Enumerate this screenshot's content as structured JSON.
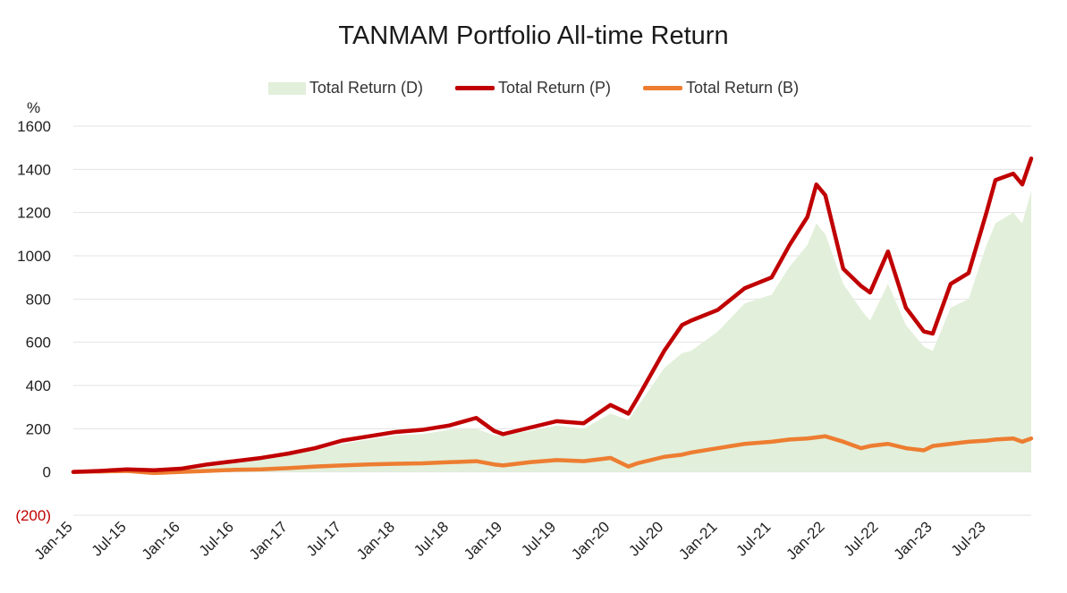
{
  "chart_data": {
    "type": "line",
    "title": "TANMAM Portfolio All-time Return",
    "ylabel": "%",
    "ylim": [
      -200,
      1600
    ],
    "yticks": [
      1600,
      1400,
      1200,
      1000,
      800,
      600,
      400,
      200,
      0,
      -200
    ],
    "ytick_labels": [
      "1600",
      "1400",
      "1200",
      "1000",
      "800",
      "600",
      "400",
      "200",
      "0",
      "(200)"
    ],
    "xtick_labels": [
      "Jan-15",
      "Jul-15",
      "Jan-16",
      "Jul-16",
      "Jan-17",
      "Jul-17",
      "Jan-18",
      "Jul-18",
      "Jan-19",
      "Jul-19",
      "Jan-20",
      "Jul-20",
      "Jan-21",
      "Jul-21",
      "Jan-22",
      "Jul-22",
      "Jan-23",
      "Jul-23"
    ],
    "grid": true,
    "legend_position": "top",
    "x": [
      "Jan-15",
      "Apr-15",
      "Jul-15",
      "Oct-15",
      "Jan-16",
      "Apr-16",
      "Jul-16",
      "Oct-16",
      "Jan-17",
      "Apr-17",
      "Jul-17",
      "Oct-17",
      "Jan-18",
      "Apr-18",
      "Jul-18",
      "Oct-18",
      "Dec-18",
      "Jan-19",
      "Apr-19",
      "Jul-19",
      "Oct-19",
      "Jan-20",
      "Mar-20",
      "Apr-20",
      "Jul-20",
      "Sep-20",
      "Oct-20",
      "Jan-21",
      "Apr-21",
      "Jul-21",
      "Sep-21",
      "Nov-21",
      "Dec-21",
      "Jan-22",
      "Mar-22",
      "May-22",
      "Jun-22",
      "Aug-22",
      "Oct-22",
      "Dec-22",
      "Jan-23",
      "Mar-23",
      "May-23",
      "Jul-23",
      "Aug-23",
      "Oct-23",
      "Nov-23",
      "Dec-23"
    ],
    "series": [
      {
        "name": "Total Return (D)",
        "kind": "area",
        "color": "#e2efda",
        "values": [
          0,
          3,
          8,
          5,
          10,
          25,
          40,
          55,
          75,
          100,
          130,
          150,
          170,
          175,
          195,
          200,
          170,
          170,
          190,
          215,
          200,
          270,
          240,
          300,
          480,
          550,
          560,
          650,
          780,
          820,
          950,
          1050,
          1150,
          1100,
          870,
          750,
          700,
          870,
          680,
          580,
          560,
          760,
          800,
          1050,
          1150,
          1200,
          1150,
          1300
        ]
      },
      {
        "name": "Total Return (P)",
        "kind": "line",
        "color": "#c00000",
        "values": [
          0,
          5,
          12,
          8,
          15,
          35,
          50,
          65,
          85,
          110,
          145,
          165,
          185,
          195,
          215,
          250,
          190,
          175,
          205,
          235,
          225,
          310,
          270,
          340,
          560,
          680,
          700,
          750,
          850,
          900,
          1050,
          1180,
          1330,
          1280,
          940,
          860,
          830,
          1020,
          760,
          650,
          640,
          870,
          920,
          1200,
          1350,
          1380,
          1330,
          1450
        ]
      },
      {
        "name": "Total Return (B)",
        "kind": "line",
        "color": "#ed7d31",
        "values": [
          0,
          2,
          5,
          -5,
          0,
          5,
          10,
          12,
          18,
          25,
          30,
          35,
          38,
          40,
          45,
          50,
          35,
          30,
          45,
          55,
          50,
          65,
          25,
          40,
          70,
          80,
          90,
          110,
          130,
          140,
          150,
          155,
          160,
          165,
          140,
          110,
          120,
          130,
          110,
          100,
          120,
          130,
          140,
          145,
          150,
          155,
          140,
          155
        ]
      }
    ]
  }
}
